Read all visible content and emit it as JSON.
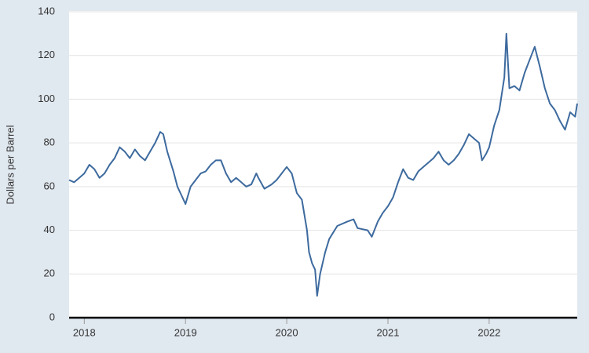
{
  "chart_data": {
    "type": "line",
    "y_label": "Dollars per Barrel",
    "x": [
      2017.85,
      2017.9,
      2017.95,
      2018.0,
      2018.05,
      2018.1,
      2018.15,
      2018.2,
      2018.25,
      2018.3,
      2018.35,
      2018.4,
      2018.45,
      2018.5,
      2018.55,
      2018.6,
      2018.65,
      2018.7,
      2018.75,
      2018.78,
      2018.82,
      2018.88,
      2018.92,
      2018.96,
      2019.0,
      2019.05,
      2019.1,
      2019.15,
      2019.2,
      2019.25,
      2019.3,
      2019.35,
      2019.4,
      2019.45,
      2019.5,
      2019.55,
      2019.6,
      2019.65,
      2019.7,
      2019.72,
      2019.78,
      2019.85,
      2019.9,
      2019.95,
      2020.0,
      2020.05,
      2020.1,
      2020.15,
      2020.2,
      2020.22,
      2020.25,
      2020.28,
      2020.3,
      2020.33,
      2020.38,
      2020.42,
      2020.5,
      2020.6,
      2020.66,
      2020.7,
      2020.8,
      2020.84,
      2020.9,
      2020.95,
      2021.0,
      2021.05,
      2021.1,
      2021.15,
      2021.2,
      2021.25,
      2021.3,
      2021.35,
      2021.4,
      2021.45,
      2021.5,
      2021.55,
      2021.6,
      2021.65,
      2021.7,
      2021.75,
      2021.8,
      2021.85,
      2021.9,
      2021.93,
      2021.97,
      2022.0,
      2022.05,
      2022.1,
      2022.15,
      2022.17,
      2022.2,
      2022.25,
      2022.3,
      2022.35,
      2022.4,
      2022.45,
      2022.5,
      2022.55,
      2022.6,
      2022.65,
      2022.7,
      2022.75,
      2022.8,
      2022.85,
      2022.87
    ],
    "series": [
      {
        "color": "#3d6a9e",
        "values": [
          63,
          62,
          64,
          66,
          70,
          68,
          64,
          66,
          70,
          73,
          78,
          76,
          73,
          77,
          74,
          72,
          76,
          80,
          85,
          84,
          76,
          67,
          60,
          56,
          52,
          60,
          63,
          66,
          67,
          70,
          72,
          72,
          66,
          62,
          64,
          62,
          60,
          61,
          66,
          64,
          59,
          61,
          63,
          66,
          69,
          66,
          57,
          54,
          40,
          30,
          25,
          22,
          10,
          20,
          30,
          36,
          42,
          44,
          45,
          41,
          40,
          37,
          44,
          48,
          51,
          55,
          62,
          68,
          64,
          63,
          67,
          69,
          71,
          73,
          76,
          72,
          70,
          72,
          75,
          79,
          84,
          82,
          80,
          72,
          75,
          78,
          88,
          95,
          110,
          130,
          105,
          106,
          104,
          112,
          118,
          124,
          115,
          105,
          98,
          95,
          90,
          86,
          94,
          92,
          98
        ]
      }
    ],
    "xlim": [
      2017.85,
      2022.87
    ],
    "xticks": [
      2018,
      2019,
      2020,
      2021,
      2022
    ],
    "ylim": [
      0,
      140
    ],
    "yticks": [
      0,
      20,
      40,
      60,
      80,
      100,
      120,
      140
    ],
    "grid": true
  }
}
